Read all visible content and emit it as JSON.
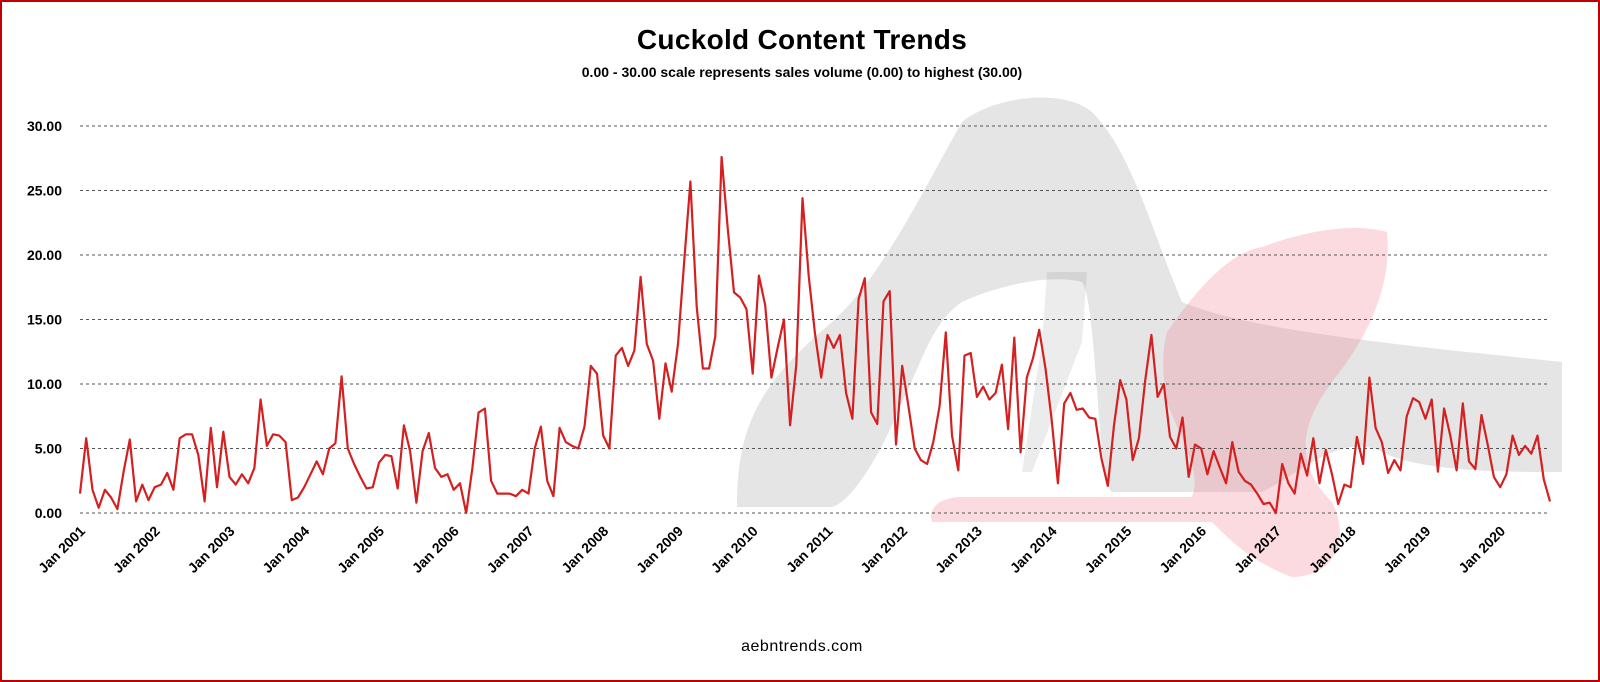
{
  "title": "Cuckold Content Trends",
  "subtitle": "0.00 - 30.00 scale represents sales volume (0.00) to highest (30.00)",
  "footer": "aebntrends.com",
  "colors": {
    "line": "#d42020",
    "frame": "#c00000",
    "grid": "#555555",
    "shoe": "#2a2a2a",
    "panty": "#f07a90"
  },
  "chart_data": {
    "type": "line",
    "title": "Cuckold Content Trends",
    "subtitle": "0.00 - 30.00 scale represents sales volume (0.00) to highest (30.00)",
    "xlabel": "",
    "ylabel": "",
    "ylim": [
      0,
      30
    ],
    "yticks": [
      "0.00",
      "5.00",
      "10.00",
      "15.00",
      "20.00",
      "25.00",
      "30.00"
    ],
    "grid": true,
    "legend": "none",
    "xticks": [
      "Jan 2001",
      "Jan 2002",
      "Jan 2003",
      "Jan 2004",
      "Jan 2005",
      "Jan 2006",
      "Jan 2007",
      "Jan 2008",
      "Jan 2009",
      "Jan 2010",
      "Jan 2011",
      "Jan 2012",
      "Jan 2013",
      "Jan 2014",
      "Jan 2015",
      "Jan 2016",
      "Jan 2017",
      "Jan 2018",
      "Jan 2019",
      "Jan 2020"
    ],
    "x_start": "Jan 2001",
    "x_end": "Aug 2020",
    "series": [
      {
        "name": "",
        "values": [
          1.5,
          5.8,
          1.8,
          0.4,
          1.8,
          1.2,
          0.3,
          3.2,
          5.7,
          0.9,
          2.2,
          1.0,
          2.0,
          2.2,
          3.1,
          1.8,
          5.8,
          6.1,
          6.1,
          4.5,
          0.9,
          6.6,
          2.0,
          6.3,
          2.8,
          2.2,
          3.0,
          2.3,
          3.5,
          8.8,
          5.2,
          6.1,
          6.0,
          5.5,
          1.0,
          1.2,
          2.0,
          3.0,
          4.0,
          3.0,
          5.0,
          5.4,
          10.6,
          5.0,
          3.8,
          2.8,
          1.9,
          2.0,
          3.9,
          4.5,
          4.4,
          1.9,
          6.8,
          4.8,
          0.8,
          4.8,
          6.2,
          3.5,
          2.8,
          3.0,
          1.8,
          2.3,
          0.0,
          3.5,
          7.8,
          8.1,
          2.5,
          1.5,
          1.5,
          1.5,
          1.3,
          1.8,
          1.5,
          5.0,
          6.7,
          2.5,
          1.3,
          6.6,
          5.5,
          5.2,
          5.0,
          6.7,
          11.4,
          10.8,
          6.0,
          5.0,
          12.2,
          12.8,
          11.4,
          12.6,
          18.3,
          13.1,
          11.8,
          7.3,
          11.6,
          9.4,
          13.1,
          19.5,
          25.7,
          16.0,
          11.2,
          11.2,
          13.7,
          27.6,
          22.0,
          17.1,
          16.7,
          15.8,
          10.8,
          18.4,
          16.1,
          10.5,
          12.8,
          15.0,
          6.8,
          11.5,
          24.4,
          18.3,
          13.9,
          10.5,
          13.8,
          12.8,
          13.8,
          9.3,
          7.3,
          16.6,
          18.2,
          7.8,
          6.9,
          16.4,
          17.2,
          5.3,
          11.4,
          8.3,
          5.0,
          4.1,
          3.8,
          5.5,
          8.3,
          14.0,
          6.0,
          3.3,
          12.2,
          12.4,
          9.0,
          9.8,
          8.8,
          9.3,
          11.5,
          6.5,
          13.6,
          4.7,
          10.5,
          12.0,
          14.2,
          11.2,
          7.2,
          2.3,
          8.5,
          9.3,
          8.0,
          8.1,
          7.4,
          7.3,
          4.2,
          2.1,
          6.8,
          10.3,
          8.8,
          4.1,
          5.8,
          10.2,
          13.8,
          9.0,
          10.0,
          5.9,
          5.0,
          7.4,
          2.8,
          5.3,
          5.0,
          3.0,
          4.8,
          3.5,
          2.3,
          5.5,
          3.2,
          2.5,
          2.2,
          1.5,
          0.7,
          0.8,
          0.0,
          3.8,
          2.3,
          1.5,
          4.6,
          2.9,
          5.8,
          2.3,
          4.9,
          3.0,
          0.7,
          2.2,
          2.0,
          5.9,
          3.8,
          10.5,
          6.6,
          5.5,
          3.1,
          4.1,
          3.3,
          7.5,
          8.9,
          8.6,
          7.3,
          8.8,
          3.2,
          8.1,
          6.0,
          3.3,
          8.5,
          4.0,
          3.4,
          7.6,
          5.3,
          2.8,
          2.0,
          3.0,
          6.0,
          4.5,
          5.2,
          4.6,
          6.0,
          2.6,
          0.9
        ]
      }
    ]
  }
}
